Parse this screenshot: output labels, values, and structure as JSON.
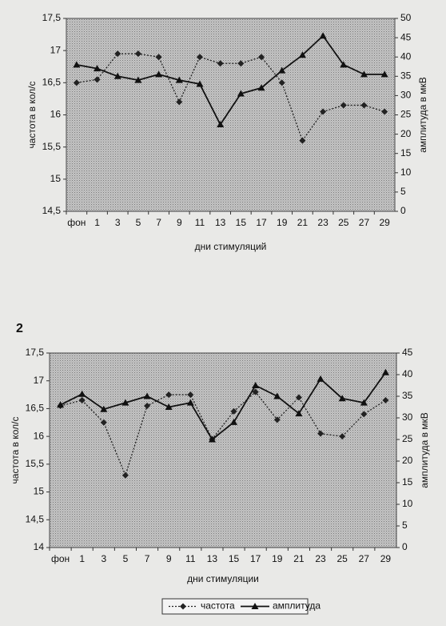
{
  "chart_data": [
    {
      "type": "line",
      "y_label": "частота в кол/с",
      "y2_label": "амплитуда в мкВ",
      "x_label": "дни стимуляций",
      "categories": [
        "фон",
        "1",
        "3",
        "5",
        "7",
        "9",
        "11",
        "13",
        "15",
        "17",
        "19",
        "21",
        "23",
        "25",
        "27",
        "29"
      ],
      "ylim": [
        14.5,
        17.5
      ],
      "yticks": [
        {
          "value": 14.5,
          "label": "14,5"
        },
        15,
        {
          "value": 15.5,
          "label": "15,5"
        },
        16,
        {
          "value": 16.5,
          "label": "16,5"
        },
        17,
        {
          "value": 17.5,
          "label": "17,5"
        }
      ],
      "y2lim": [
        0,
        50
      ],
      "y2ticks": [
        0,
        5,
        10,
        15,
        20,
        25,
        30,
        35,
        40,
        45,
        50
      ],
      "legend": false,
      "series": [
        {
          "name": "частота",
          "color": "#222222",
          "dash": true,
          "marker": "diamond",
          "values": [
            16.5,
            16.55,
            16.95,
            16.95,
            16.9,
            16.2,
            16.9,
            16.8,
            16.8,
            16.9,
            16.5,
            15.6,
            16.05,
            16.15,
            16.15,
            16.05
          ]
        },
        {
          "name": "амплитуда",
          "color": "#111111",
          "dash": false,
          "marker": "triangle",
          "axis": "y2",
          "values": [
            38,
            37,
            35,
            34,
            35.5,
            34,
            33,
            22.5,
            30.5,
            32,
            36.5,
            40.5,
            45.5,
            38,
            35.5,
            35.5
          ]
        }
      ]
    },
    {
      "type": "line",
      "label": "2",
      "y_label": "частота в кол/с",
      "y2_label": "амплитуда в мкВ",
      "x_label": "дни стимуляции",
      "categories": [
        "фон",
        "1",
        "3",
        "5",
        "7",
        "9",
        "11",
        "13",
        "15",
        "17",
        "19",
        "21",
        "23",
        "25",
        "27",
        "29"
      ],
      "ylim": [
        14,
        17.5
      ],
      "yticks": [
        14,
        {
          "value": 14.5,
          "label": "14,5"
        },
        15,
        {
          "value": 15.5,
          "label": "15,5"
        },
        16,
        {
          "value": 16.5,
          "label": "16,5"
        },
        17,
        {
          "value": 17.5,
          "label": "17,5"
        }
      ],
      "y2lim": [
        0,
        45
      ],
      "y2ticks": [
        0,
        5,
        10,
        15,
        20,
        25,
        30,
        35,
        40,
        45
      ],
      "legend": true,
      "series": [
        {
          "name": "частота",
          "color": "#222222",
          "dash": true,
          "marker": "diamond",
          "values": [
            16.55,
            16.65,
            16.25,
            15.3,
            16.55,
            16.75,
            16.75,
            15.95,
            16.45,
            16.8,
            16.3,
            16.7,
            16.05,
            16.0,
            16.4,
            16.65
          ]
        },
        {
          "name": "амплитуда",
          "color": "#111111",
          "dash": false,
          "marker": "triangle",
          "axis": "y2",
          "values": [
            33,
            35.5,
            32,
            33.5,
            35,
            32.5,
            33.5,
            25,
            29,
            37.5,
            35,
            31,
            39,
            34.5,
            33.5,
            40.5
          ]
        }
      ]
    }
  ]
}
